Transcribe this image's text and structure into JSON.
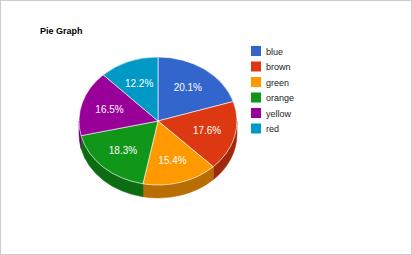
{
  "chart_data": {
    "type": "pie",
    "title": "Pie Graph",
    "categories": [
      "blue",
      "brown",
      "green",
      "orange",
      "yellow",
      "red"
    ],
    "values": [
      20.1,
      17.6,
      15.4,
      18.3,
      16.5,
      12.2
    ],
    "value_labels": [
      "20.1%",
      "17.6%",
      "15.4%",
      "18.3%",
      "16.5%",
      "12.2%"
    ],
    "colors": [
      "#3366cc",
      "#dc3912",
      "#ff9900",
      "#109618",
      "#990099",
      "#0099c6"
    ],
    "data_labels": true,
    "legend": "right"
  }
}
